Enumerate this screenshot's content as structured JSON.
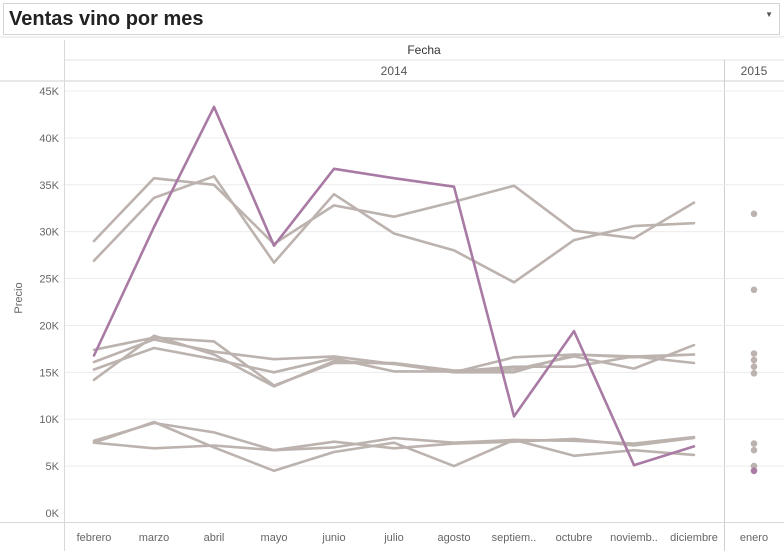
{
  "title": "Ventas vino por mes",
  "header": {
    "field": "Fecha",
    "year_2014": "2014",
    "year_2015": "2015"
  },
  "chart_data": {
    "type": "line",
    "ylabel": "Precio",
    "ylim": [
      0,
      45000
    ],
    "yticks": [
      "0K",
      "5K",
      "10K",
      "15K",
      "20K",
      "25K",
      "30K",
      "35K",
      "40K",
      "45K"
    ],
    "ytick_values": [
      0,
      5000,
      10000,
      15000,
      20000,
      25000,
      30000,
      35000,
      40000,
      45000
    ],
    "categories": [
      "febrero",
      "marzo",
      "abril",
      "mayo",
      "junio",
      "julio",
      "agosto",
      "septiem..",
      "octubre",
      "noviemb..",
      "diciembre"
    ],
    "categories_2015": [
      "enero"
    ],
    "highlight_color": "#a87aa4",
    "base_color": "#bcb3af",
    "series": [
      {
        "highlight": true,
        "values": [
          16800,
          30500,
          43300,
          28500,
          36700,
          35700,
          34800,
          10300,
          19400,
          5100,
          7100
        ]
      },
      {
        "highlight": false,
        "values": [
          29000,
          35700,
          35000,
          28700,
          32800,
          31600,
          33200,
          34900,
          30100,
          29300,
          33100
        ]
      },
      {
        "highlight": false,
        "values": [
          26900,
          33600,
          35900,
          26700,
          34000,
          29800,
          28000,
          24600,
          29100,
          30600,
          30900
        ]
      },
      {
        "highlight": false,
        "values": [
          17400,
          18700,
          18300,
          13600,
          16000,
          16000,
          15200,
          15300,
          16700,
          15400,
          17900
        ]
      },
      {
        "highlight": false,
        "values": [
          16100,
          18500,
          17200,
          16400,
          16700,
          15900,
          15000,
          16600,
          16900,
          16600,
          16900
        ]
      },
      {
        "highlight": false,
        "values": [
          15300,
          17600,
          16400,
          15000,
          16500,
          15100,
          15100,
          15600,
          15600,
          16700,
          16000
        ]
      },
      {
        "highlight": false,
        "values": [
          14200,
          18900,
          16900,
          13500,
          16200,
          15900,
          15000,
          15000,
          16900,
          16700,
          16900
        ]
      },
      {
        "highlight": false,
        "values": [
          7700,
          9600,
          8600,
          6700,
          7600,
          6900,
          7400,
          7600,
          7900,
          7200,
          8000
        ]
      },
      {
        "highlight": false,
        "values": [
          7500,
          6900,
          7200,
          6700,
          7000,
          8000,
          7500,
          7800,
          7700,
          7400,
          8100
        ]
      },
      {
        "highlight": false,
        "values": [
          7500,
          9700,
          7000,
          4500,
          6500,
          7500,
          5000,
          7800,
          6100,
          6700,
          6200
        ]
      }
    ],
    "enero_2015": [
      {
        "highlight": false,
        "value": 31900
      },
      {
        "highlight": false,
        "value": 23800
      },
      {
        "highlight": false,
        "value": 17000
      },
      {
        "highlight": false,
        "value": 16300
      },
      {
        "highlight": false,
        "value": 15600
      },
      {
        "highlight": false,
        "value": 14900
      },
      {
        "highlight": false,
        "value": 7400
      },
      {
        "highlight": false,
        "value": 6700
      },
      {
        "highlight": false,
        "value": 5000
      },
      {
        "highlight": true,
        "value": 4500
      }
    ]
  }
}
